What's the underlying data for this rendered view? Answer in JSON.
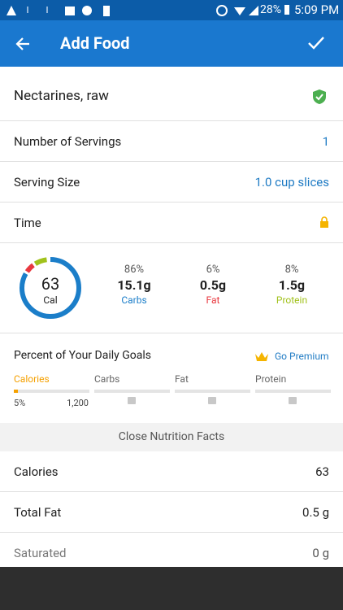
{
  "status_bar": {
    "battery": "28%",
    "time": "5:09 PM"
  },
  "app_bar": {
    "title": "Add Food"
  },
  "food": {
    "name": "Nectarines, raw"
  },
  "rows": [
    {
      "label": "Number of Servings",
      "value": "1"
    },
    {
      "label": "Serving Size",
      "value": "1.0 cup slices"
    },
    {
      "label": "Time"
    }
  ],
  "summary": {
    "calories": "63",
    "calories_label": "Cal",
    "macros": [
      {
        "percent": "86%",
        "amount": "15.1g",
        "name": "Carbs"
      },
      {
        "percent": "6%",
        "amount": "0.5g",
        "name": "Fat"
      },
      {
        "percent": "8%",
        "amount": "1.5g",
        "name": "Protein"
      }
    ]
  },
  "goals": {
    "title": "Percent of Your Daily Goals",
    "premium": "Go Premium",
    "columns": [
      "Calories",
      "Carbs",
      "Fat",
      "Protein"
    ],
    "calories_percent": "5%",
    "calories_goal": "1,200"
  },
  "nutrition": {
    "toggle": "Close Nutrition Facts",
    "rows": [
      {
        "label": "Calories",
        "value": "63"
      },
      {
        "label": "Total Fat",
        "value": "0.5 g"
      },
      {
        "label": "Saturated",
        "value": "0 g"
      }
    ]
  }
}
